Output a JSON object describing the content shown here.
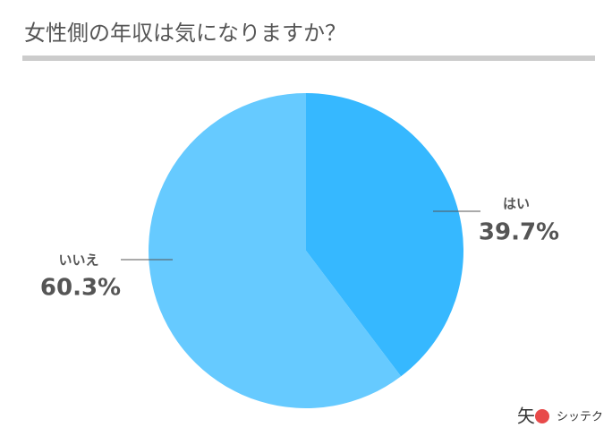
{
  "chart_data": {
    "type": "pie",
    "title": "女性側の年収は気になりますか？",
    "categories": [
      "はい",
      "いいえ"
    ],
    "values": [
      39.7,
      60.3
    ],
    "value_labels": [
      "39.7%",
      "60.3%"
    ],
    "colors": [
      "#36b8ff",
      "#66caff"
    ]
  },
  "brand": "シッテク"
}
